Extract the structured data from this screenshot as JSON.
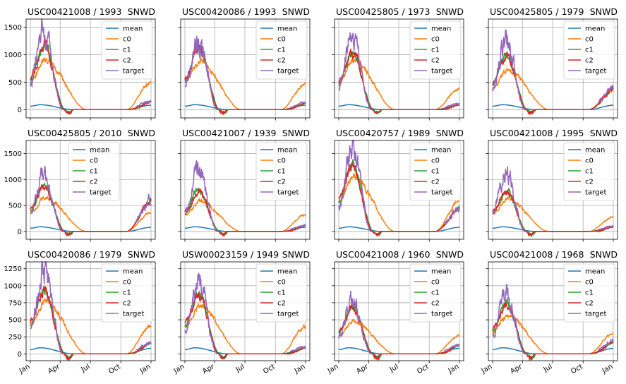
{
  "colors": {
    "mean": "#1f77b4",
    "c0": "#ff7f0e",
    "c1": "#2ca02c",
    "c2": "#d62728",
    "target": "#9467bd",
    "grid": "#b0b0b0",
    "axis": "#000000"
  },
  "chart_data": [
    {
      "type": "line",
      "title": "USC00421008 / 1993",
      "variable": "SNWD",
      "ylim": [
        -150,
        1650
      ],
      "yticks": [
        0,
        500,
        1000,
        1500
      ],
      "show_yticklabels": true,
      "show_xticklabels": false,
      "xticks": [
        "Jan",
        "Apr",
        "Jul",
        "Oct",
        "Jan"
      ],
      "peak_target": 1500,
      "peak_c": 1200,
      "peak_c0": 900,
      "mean_peak": 90,
      "end_c0": 500,
      "end_target": 150,
      "grid": true,
      "legend": "upper-right",
      "series": [
        {
          "name": "mean"
        },
        {
          "name": "c0"
        },
        {
          "name": "c1"
        },
        {
          "name": "c2"
        },
        {
          "name": "target"
        }
      ]
    },
    {
      "type": "line",
      "title": "USC00420086 / 1993",
      "variable": "SNWD",
      "ylim": [
        -150,
        1650
      ],
      "yticks": [
        0,
        500,
        1000,
        1500
      ],
      "show_yticklabels": false,
      "show_xticklabels": false,
      "xticks": [
        "Jan",
        "Apr",
        "Jul",
        "Oct",
        "Jan"
      ],
      "peak_target": 1350,
      "peak_c": 1150,
      "peak_c0": 880,
      "mean_peak": 90,
      "end_c0": 480,
      "end_target": 120,
      "grid": true,
      "legend": "upper-right",
      "series": [
        {
          "name": "mean"
        },
        {
          "name": "c0"
        },
        {
          "name": "c1"
        },
        {
          "name": "c2"
        },
        {
          "name": "target"
        }
      ]
    },
    {
      "type": "line",
      "title": "USC00425805 / 1973",
      "variable": "SNWD",
      "ylim": [
        -150,
        1650
      ],
      "yticks": [
        0,
        500,
        1000,
        1500
      ],
      "show_yticklabels": false,
      "show_xticklabels": false,
      "xticks": [
        "Jan",
        "Apr",
        "Jul",
        "Oct",
        "Jan"
      ],
      "peak_target": 1400,
      "peak_c": 1050,
      "peak_c0": 900,
      "mean_peak": 90,
      "end_c0": 380,
      "end_target": 100,
      "grid": true,
      "legend": "upper-right",
      "series": [
        {
          "name": "mean"
        },
        {
          "name": "c0"
        },
        {
          "name": "c1"
        },
        {
          "name": "c2"
        },
        {
          "name": "target"
        }
      ]
    },
    {
      "type": "line",
      "title": "USC00425805 / 1979",
      "variable": "SNWD",
      "ylim": [
        -150,
        1650
      ],
      "yticks": [
        0,
        500,
        1000,
        1500
      ],
      "show_yticklabels": false,
      "show_xticklabels": false,
      "xticks": [
        "Jan",
        "Apr",
        "Jul",
        "Oct",
        "Jan"
      ],
      "peak_target": 1300,
      "peak_c": 1000,
      "peak_c0": 720,
      "mean_peak": 90,
      "end_c0": 350,
      "end_target": 380,
      "grid": true,
      "legend": "upper-right",
      "series": [
        {
          "name": "mean"
        },
        {
          "name": "c0"
        },
        {
          "name": "c1"
        },
        {
          "name": "c2"
        },
        {
          "name": "target"
        }
      ]
    },
    {
      "type": "line",
      "title": "USC00425805 / 2010",
      "variable": "SNWD",
      "ylim": [
        -150,
        1750
      ],
      "yticks": [
        0,
        500,
        1000,
        1500
      ],
      "show_yticklabels": true,
      "show_xticklabels": false,
      "xticks": [
        "Jan",
        "Apr",
        "Jul",
        "Oct",
        "Jan"
      ],
      "peak_target": 1080,
      "peak_c": 880,
      "peak_c0": 650,
      "mean_peak": 90,
      "end_c0": 360,
      "end_target": 600,
      "grid": true,
      "legend": "upper-center",
      "series": [
        {
          "name": "mean"
        },
        {
          "name": "c0"
        },
        {
          "name": "c1"
        },
        {
          "name": "c2"
        },
        {
          "name": "target"
        }
      ]
    },
    {
      "type": "line",
      "title": "USC00421007 / 1939",
      "variable": "SNWD",
      "ylim": [
        -150,
        1750
      ],
      "yticks": [
        0,
        500,
        1000,
        1500
      ],
      "show_yticklabels": false,
      "show_xticklabels": false,
      "xticks": [
        "Jan",
        "Apr",
        "Jul",
        "Oct",
        "Jan"
      ],
      "peak_target": 1220,
      "peak_c": 800,
      "peak_c0": 580,
      "mean_peak": 90,
      "end_c0": 330,
      "end_target": 120,
      "grid": true,
      "legend": "upper-right",
      "series": [
        {
          "name": "mean"
        },
        {
          "name": "c0"
        },
        {
          "name": "c1"
        },
        {
          "name": "c2"
        },
        {
          "name": "target"
        }
      ]
    },
    {
      "type": "line",
      "title": "USC00420757 / 1989",
      "variable": "SNWD",
      "ylim": [
        -150,
        1750
      ],
      "yticks": [
        0,
        500,
        1000,
        1500
      ],
      "show_yticklabels": false,
      "show_xticklabels": false,
      "xticks": [
        "Jan",
        "Apr",
        "Jul",
        "Oct",
        "Jan"
      ],
      "peak_target": 1600,
      "peak_c": 1280,
      "peak_c0": 1050,
      "mean_peak": 90,
      "end_c0": 580,
      "end_target": 450,
      "grid": true,
      "legend": "upper-right",
      "series": [
        {
          "name": "mean"
        },
        {
          "name": "c0"
        },
        {
          "name": "c1"
        },
        {
          "name": "c2"
        },
        {
          "name": "target"
        }
      ]
    },
    {
      "type": "line",
      "title": "USC00421008 / 1995",
      "variable": "SNWD",
      "ylim": [
        -150,
        1750
      ],
      "yticks": [
        0,
        500,
        1000,
        1500
      ],
      "show_yticklabels": false,
      "show_xticklabels": false,
      "xticks": [
        "Jan",
        "Apr",
        "Jul",
        "Oct",
        "Jan"
      ],
      "peak_target": 1150,
      "peak_c": 780,
      "peak_c0": 620,
      "mean_peak": 90,
      "end_c0": 280,
      "end_target": 100,
      "grid": true,
      "legend": "upper-right",
      "series": [
        {
          "name": "mean"
        },
        {
          "name": "c0"
        },
        {
          "name": "c1"
        },
        {
          "name": "c2"
        },
        {
          "name": "target"
        }
      ]
    },
    {
      "type": "line",
      "title": "USC00420086 / 1979",
      "variable": "SNWD",
      "ylim": [
        -100,
        1350
      ],
      "yticks": [
        0,
        250,
        500,
        750,
        1000,
        1250
      ],
      "show_yticklabels": true,
      "show_xticklabels": true,
      "xticks": [
        "Jan",
        "Apr",
        "Jul",
        "Oct",
        "Jan"
      ],
      "peak_target": 1250,
      "peak_c": 950,
      "peak_c0": 780,
      "mean_peak": 90,
      "end_c0": 420,
      "end_target": 160,
      "grid": true,
      "legend": "upper-right",
      "series": [
        {
          "name": "mean"
        },
        {
          "name": "c0"
        },
        {
          "name": "c1"
        },
        {
          "name": "c2"
        },
        {
          "name": "target"
        }
      ]
    },
    {
      "type": "line",
      "title": "USW00023159 / 1949",
      "variable": "SNWD",
      "ylim": [
        -100,
        1350
      ],
      "yticks": [
        0,
        250,
        500,
        750,
        1000,
        1250
      ],
      "show_yticklabels": false,
      "show_xticklabels": true,
      "xticks": [
        "Jan",
        "Apr",
        "Jul",
        "Oct",
        "Jan"
      ],
      "peak_target": 1100,
      "peak_c": 900,
      "peak_c0": 720,
      "mean_peak": 90,
      "end_c0": 400,
      "end_target": 100,
      "grid": true,
      "legend": "upper-right",
      "series": [
        {
          "name": "mean"
        },
        {
          "name": "c0"
        },
        {
          "name": "c1"
        },
        {
          "name": "c2"
        },
        {
          "name": "target"
        }
      ]
    },
    {
      "type": "line",
      "title": "USC00421008 / 1960",
      "variable": "SNWD",
      "ylim": [
        -100,
        1350
      ],
      "yticks": [
        0,
        250,
        500,
        750,
        1000,
        1250
      ],
      "show_yticklabels": false,
      "show_xticklabels": true,
      "xticks": [
        "Jan",
        "Apr",
        "Jul",
        "Oct",
        "Jan"
      ],
      "peak_target": 830,
      "peak_c": 700,
      "peak_c0": 480,
      "mean_peak": 90,
      "end_c0": 270,
      "end_target": 130,
      "grid": true,
      "legend": "upper-right",
      "series": [
        {
          "name": "mean"
        },
        {
          "name": "c0"
        },
        {
          "name": "c1"
        },
        {
          "name": "c2"
        },
        {
          "name": "target"
        }
      ]
    },
    {
      "type": "line",
      "title": "USC00421008 / 1968",
      "variable": "SNWD",
      "ylim": [
        -100,
        1350
      ],
      "yticks": [
        0,
        250,
        500,
        750,
        1000,
        1250
      ],
      "show_yticklabels": false,
      "show_xticklabels": true,
      "xticks": [
        "Jan",
        "Apr",
        "Jul",
        "Oct",
        "Jan"
      ],
      "peak_target": 880,
      "peak_c": 740,
      "peak_c0": 560,
      "mean_peak": 90,
      "end_c0": 300,
      "end_target": 170,
      "grid": true,
      "legend": "upper-right",
      "series": [
        {
          "name": "mean"
        },
        {
          "name": "c0"
        },
        {
          "name": "c1"
        },
        {
          "name": "c2"
        },
        {
          "name": "target"
        }
      ]
    }
  ]
}
